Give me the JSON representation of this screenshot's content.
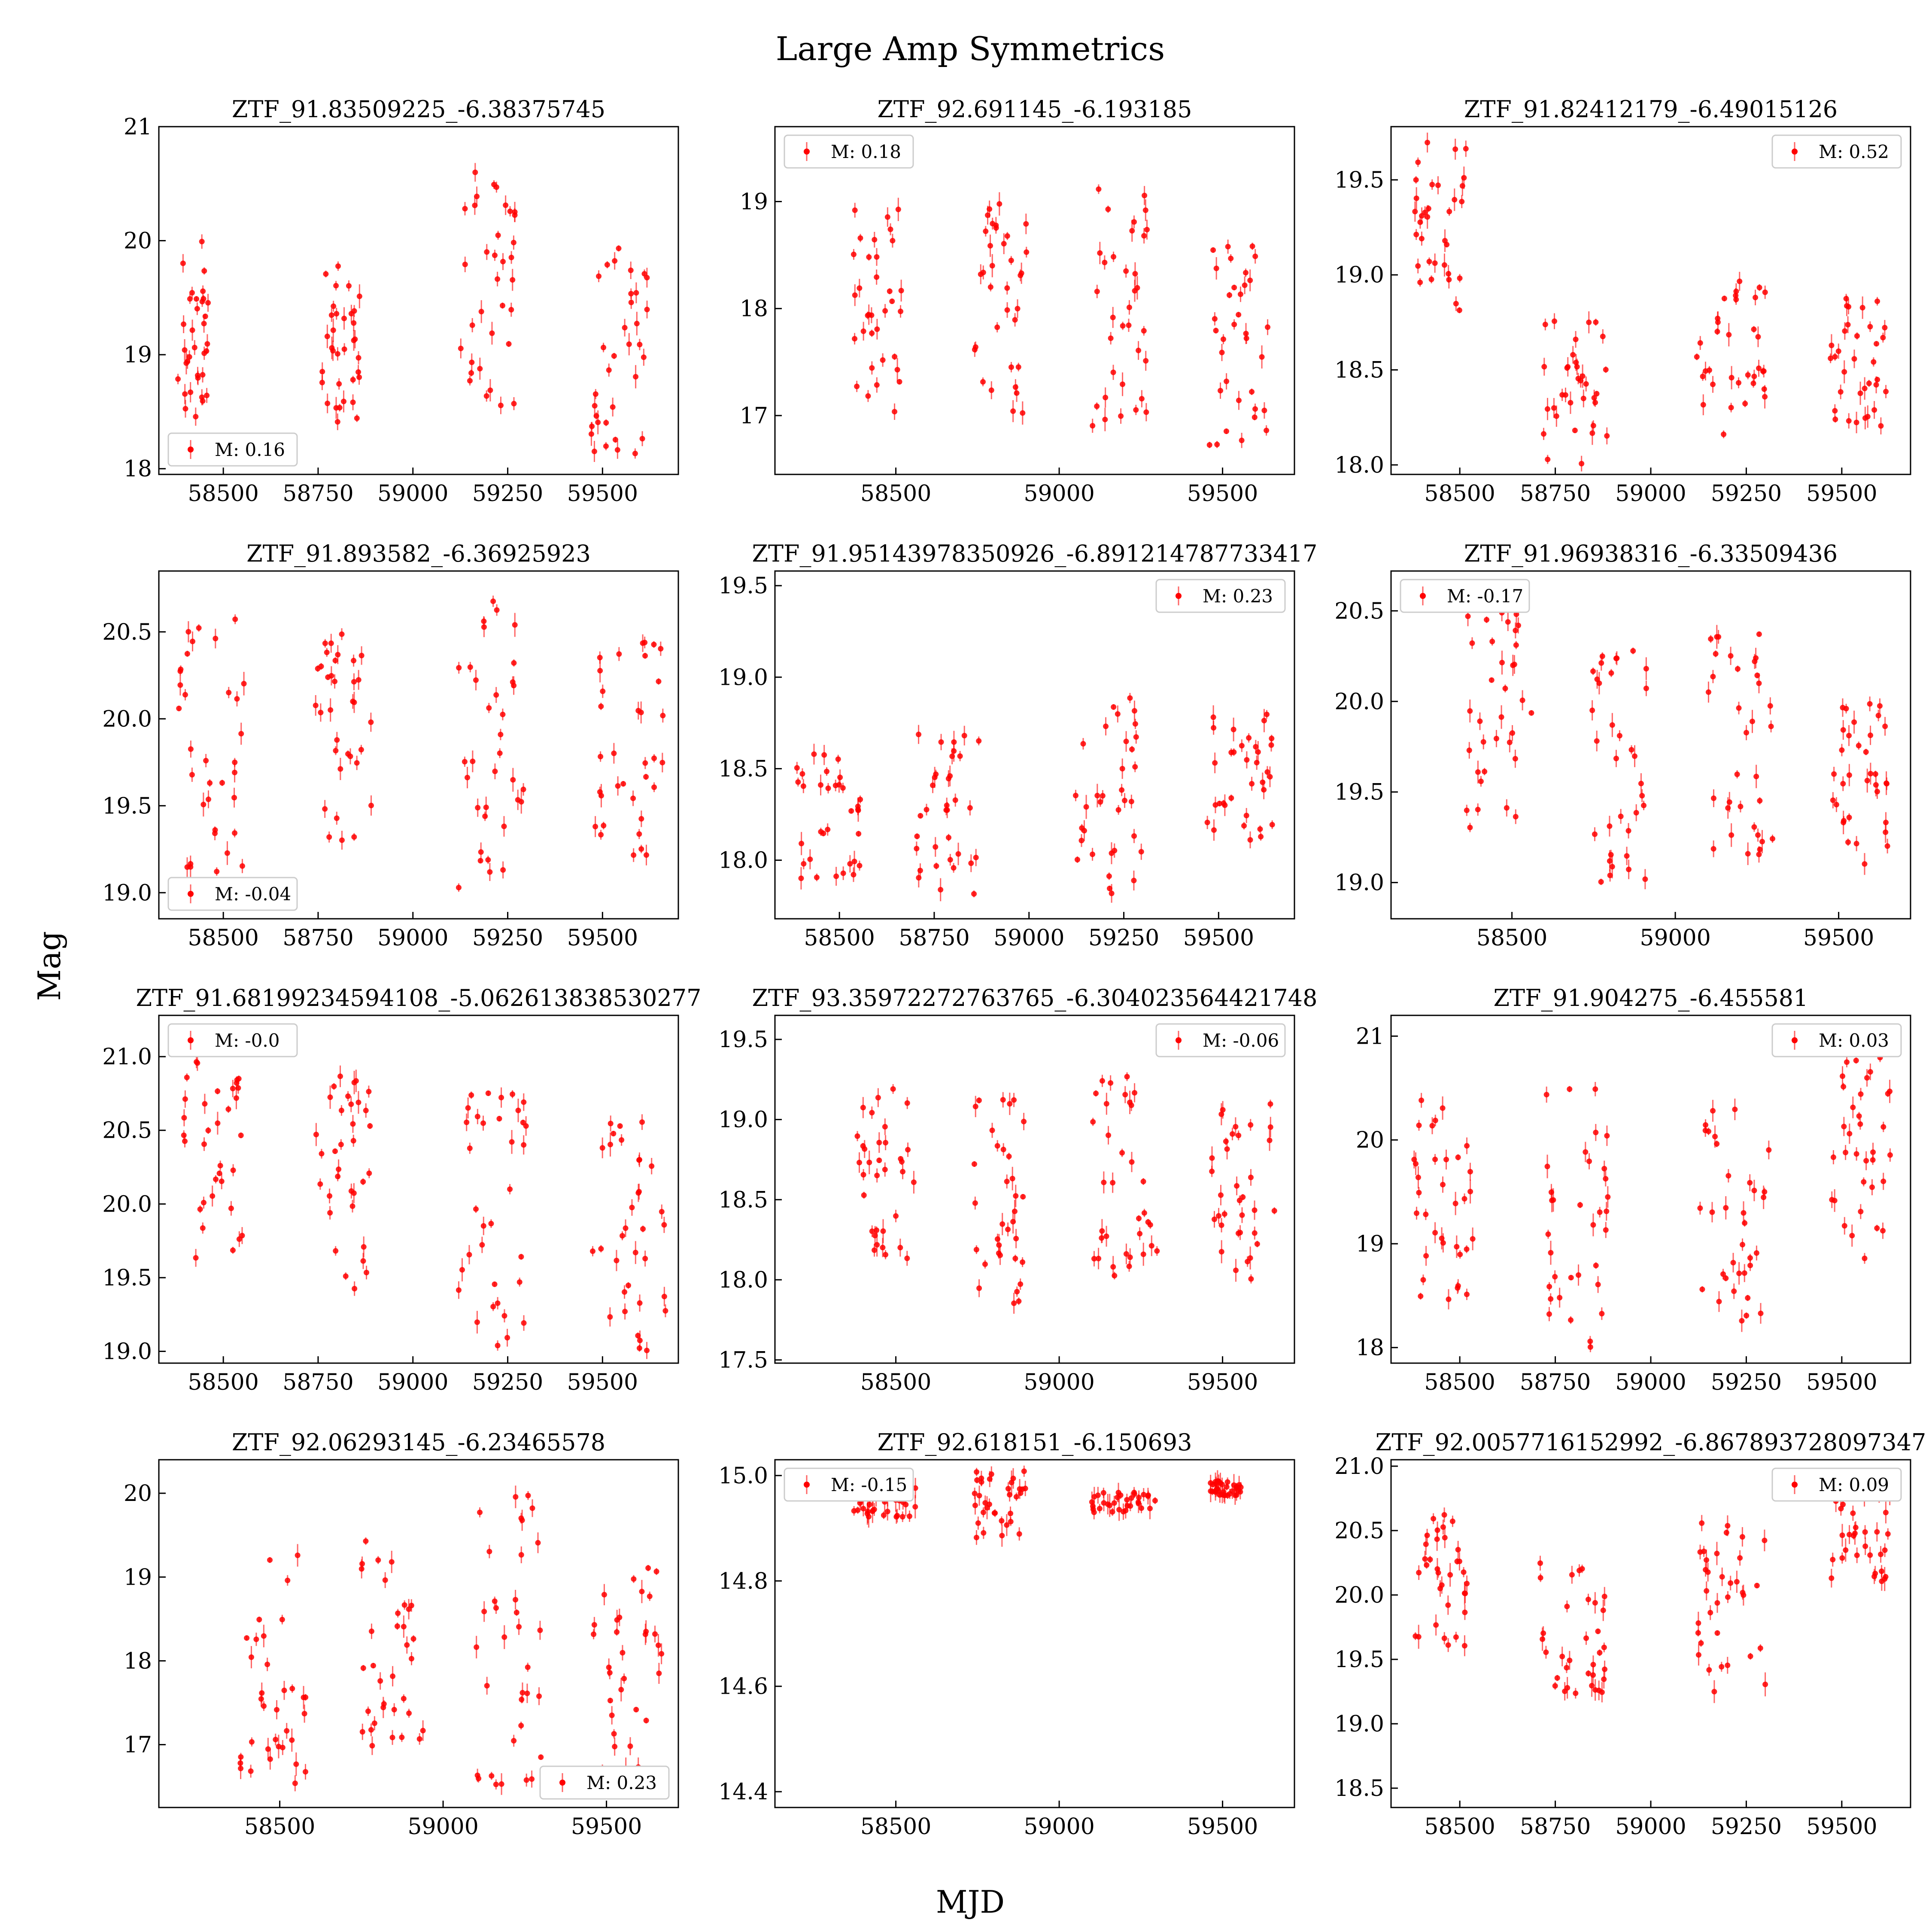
{
  "figure": {
    "title": "Large Amp Symmetrics",
    "xlabel": "MJD",
    "ylabel": "Mag",
    "marker_color": "#ff0000",
    "legend_prefix": "M: "
  },
  "chart_data": [
    {
      "type": "scatter",
      "title": "ZTF_91.83509225_-6.38375745",
      "legend": "M: 0.16",
      "legend_loc": "lower left",
      "xlim": [
        58330,
        59700
      ],
      "ylim": [
        21.0,
        17.95
      ],
      "xticks": [
        58500,
        58750,
        59000,
        59250,
        59500
      ],
      "yticks": [
        18,
        19,
        20,
        21
      ],
      "ytick_labels": [
        "18",
        "19",
        "20",
        "21"
      ],
      "clusters": [
        {
          "x": [
            58380,
            58460
          ],
          "y": [
            18.3,
            20.0
          ]
        },
        {
          "x": [
            58760,
            58880
          ],
          "y": [
            18.4,
            19.8
          ]
        },
        {
          "x": [
            59120,
            59270
          ],
          "y": [
            18.5,
            20.7
          ]
        },
        {
          "x": [
            59470,
            59620
          ],
          "y": [
            18.1,
            20.1
          ]
        }
      ]
    },
    {
      "type": "scatter",
      "title": "ZTF_92.691145_-6.193185",
      "legend": "M: 0.18",
      "legend_loc": "upper left",
      "xlim": [
        58130,
        59720
      ],
      "ylim": [
        19.7,
        16.45
      ],
      "xticks": [
        58500,
        59000,
        59500
      ],
      "yticks": [
        17,
        18,
        19
      ],
      "ytick_labels": [
        "17",
        "18",
        "19"
      ],
      "clusters": [
        {
          "x": [
            58370,
            58520
          ],
          "y": [
            17.0,
            19.0
          ]
        },
        {
          "x": [
            58740,
            58900
          ],
          "y": [
            17.0,
            19.0
          ]
        },
        {
          "x": [
            59100,
            59280
          ],
          "y": [
            16.9,
            19.3
          ]
        },
        {
          "x": [
            59460,
            59650
          ],
          "y": [
            16.7,
            18.8
          ]
        }
      ]
    },
    {
      "type": "scatter",
      "title": "ZTF_91.82412179_-6.49015126",
      "legend": "M: 0.52",
      "legend_loc": "upper right",
      "xlim": [
        58320,
        59680
      ],
      "ylim": [
        19.78,
        17.95
      ],
      "xticks": [
        58500,
        58750,
        59000,
        59250,
        59500
      ],
      "yticks": [
        18.0,
        18.5,
        19.0,
        19.5
      ],
      "ytick_labels": [
        "18.0",
        "18.5",
        "19.0",
        "19.5"
      ],
      "clusters": [
        {
          "x": [
            58380,
            58520
          ],
          "y": [
            18.8,
            19.7
          ]
        },
        {
          "x": [
            58710,
            58890
          ],
          "y": [
            18.0,
            18.8
          ]
        },
        {
          "x": [
            59120,
            59310
          ],
          "y": [
            18.1,
            19.0
          ]
        },
        {
          "x": [
            59470,
            59620
          ],
          "y": [
            18.2,
            18.9
          ]
        }
      ]
    },
    {
      "type": "scatter",
      "title": "ZTF_91.893582_-6.36925923",
      "legend": "M: -0.04",
      "legend_loc": "lower left",
      "xlim": [
        58330,
        59700
      ],
      "ylim": [
        20.85,
        18.85
      ],
      "xticks": [
        58500,
        58750,
        59000,
        59250,
        59500
      ],
      "yticks": [
        19.0,
        19.5,
        20.0,
        20.5
      ],
      "ytick_labels": [
        "19.0",
        "19.5",
        "20.0",
        "20.5"
      ],
      "clusters": [
        {
          "x": [
            58380,
            58560
          ],
          "y": [
            19.1,
            20.6
          ]
        },
        {
          "x": [
            58740,
            58890
          ],
          "y": [
            19.3,
            20.5
          ]
        },
        {
          "x": [
            59120,
            59300
          ],
          "y": [
            19.0,
            20.7
          ]
        },
        {
          "x": [
            59470,
            59660
          ],
          "y": [
            19.2,
            20.5
          ]
        }
      ]
    },
    {
      "type": "scatter",
      "title": "ZTF_91.95143978350926_-6.891214787733417",
      "legend": "M: 0.23",
      "legend_loc": "upper right",
      "xlim": [
        58330,
        59700
      ],
      "ylim": [
        19.58,
        17.68
      ],
      "xticks": [
        58500,
        58750,
        59000,
        59250,
        59500
      ],
      "yticks": [
        18.0,
        18.5,
        19.0,
        19.5
      ],
      "ytick_labels": [
        "18.0",
        "18.5",
        "19.0",
        "19.5"
      ],
      "clusters": [
        {
          "x": [
            58380,
            58560
          ],
          "y": [
            17.9,
            18.6
          ]
        },
        {
          "x": [
            58700,
            58880
          ],
          "y": [
            17.8,
            18.7
          ]
        },
        {
          "x": [
            59120,
            59300
          ],
          "y": [
            17.8,
            18.9
          ]
        },
        {
          "x": [
            59470,
            59660
          ],
          "y": [
            18.1,
            18.9
          ]
        }
      ]
    },
    {
      "type": "scatter",
      "title": "ZTF_91.96938316_-6.33509436",
      "legend": "M: -0.17",
      "legend_loc": "upper left",
      "xlim": [
        58130,
        59720
      ],
      "ylim": [
        20.72,
        18.8
      ],
      "xticks": [
        58500,
        59000,
        59500
      ],
      "yticks": [
        19.0,
        19.5,
        20.0,
        20.5
      ],
      "ytick_labels": [
        "19.0",
        "19.5",
        "20.0",
        "20.5"
      ],
      "clusters": [
        {
          "x": [
            58360,
            58560
          ],
          "y": [
            19.3,
            20.5
          ]
        },
        {
          "x": [
            58740,
            58920
          ],
          "y": [
            19.0,
            20.3
          ]
        },
        {
          "x": [
            59100,
            59300
          ],
          "y": [
            19.1,
            20.4
          ]
        },
        {
          "x": [
            59470,
            59650
          ],
          "y": [
            19.1,
            20.0
          ]
        }
      ]
    },
    {
      "type": "scatter",
      "title": "ZTF_91.68199234594108_-5.062613838530277",
      "legend": "M: -0.0",
      "legend_loc": "upper left",
      "xlim": [
        58330,
        59700
      ],
      "ylim": [
        21.28,
        18.92
      ],
      "xticks": [
        58500,
        58750,
        59000,
        59250,
        59500
      ],
      "yticks": [
        19.0,
        19.5,
        20.0,
        20.5,
        21.0
      ],
      "ytick_labels": [
        "19.0",
        "19.5",
        "20.0",
        "20.5",
        "21.0"
      ],
      "clusters": [
        {
          "x": [
            58380,
            58560
          ],
          "y": [
            19.5,
            21.0
          ]
        },
        {
          "x": [
            58740,
            58890
          ],
          "y": [
            19.4,
            20.9
          ]
        },
        {
          "x": [
            59120,
            59300
          ],
          "y": [
            19.0,
            20.8
          ]
        },
        {
          "x": [
            59470,
            59670
          ],
          "y": [
            19.0,
            20.6
          ]
        }
      ]
    },
    {
      "type": "scatter",
      "title": "ZTF_93.35972272763765_-6.304023564421748",
      "legend": "M: -0.06",
      "legend_loc": "upper right",
      "xlim": [
        58130,
        59720
      ],
      "ylim": [
        19.65,
        17.48
      ],
      "xticks": [
        58500,
        59000,
        59500
      ],
      "yticks": [
        17.5,
        18.0,
        18.5,
        19.0,
        19.5
      ],
      "ytick_labels": [
        "17.5",
        "18.0",
        "18.5",
        "19.0",
        "19.5"
      ],
      "clusters": [
        {
          "x": [
            58370,
            58560
          ],
          "y": [
            18.1,
            19.2
          ]
        },
        {
          "x": [
            58740,
            58900
          ],
          "y": [
            17.8,
            19.2
          ]
        },
        {
          "x": [
            59100,
            59300
          ],
          "y": [
            17.9,
            19.3
          ]
        },
        {
          "x": [
            59460,
            59670
          ],
          "y": [
            18.0,
            19.1
          ]
        }
      ]
    },
    {
      "type": "scatter",
      "title": "ZTF_91.904275_-6.455581",
      "legend": "M: 0.03",
      "legend_loc": "upper right",
      "xlim": [
        58320,
        59680
      ],
      "ylim": [
        21.2,
        17.85
      ],
      "xticks": [
        58500,
        58750,
        59000,
        59250,
        59500
      ],
      "yticks": [
        18,
        19,
        20,
        21
      ],
      "ytick_labels": [
        "18",
        "19",
        "20",
        "21"
      ],
      "clusters": [
        {
          "x": [
            58380,
            58540
          ],
          "y": [
            18.4,
            20.5
          ]
        },
        {
          "x": [
            58710,
            58890
          ],
          "y": [
            18.0,
            20.5
          ]
        },
        {
          "x": [
            59120,
            59310
          ],
          "y": [
            18.2,
            20.3
          ]
        },
        {
          "x": [
            59470,
            59630
          ],
          "y": [
            18.8,
            20.8
          ]
        }
      ]
    },
    {
      "type": "scatter",
      "title": "ZTF_92.06293145_-6.23465578",
      "legend": "M: 0.23",
      "legend_loc": "lower right",
      "xlim": [
        58130,
        59720
      ],
      "ylim": [
        20.4,
        16.25
      ],
      "xticks": [
        58500,
        59000,
        59500
      ],
      "yticks": [
        17,
        18,
        19,
        20
      ],
      "ytick_labels": [
        "17",
        "18",
        "19",
        "20"
      ],
      "clusters": [
        {
          "x": [
            58370,
            58590
          ],
          "y": [
            16.5,
            19.4
          ]
        },
        {
          "x": [
            58740,
            58950
          ],
          "y": [
            16.8,
            19.5
          ]
        },
        {
          "x": [
            59100,
            59300
          ],
          "y": [
            16.5,
            20.0
          ]
        },
        {
          "x": [
            59460,
            59670
          ],
          "y": [
            16.5,
            19.3
          ]
        }
      ]
    },
    {
      "type": "scatter",
      "title": "ZTF_92.618151_-6.150693",
      "legend": "M: -0.15",
      "legend_loc": "upper left",
      "xlim": [
        58130,
        59720
      ],
      "ylim": [
        15.03,
        14.37
      ],
      "xticks": [
        58500,
        59000,
        59500
      ],
      "yticks": [
        14.4,
        14.6,
        14.8,
        15.0
      ],
      "ytick_labels": [
        "14.4",
        "14.6",
        "14.8",
        "15.0"
      ],
      "clusters": [
        {
          "x": [
            58370,
            58560
          ],
          "y": [
            14.92,
            14.98
          ]
        },
        {
          "x": [
            58740,
            58900
          ],
          "y": [
            14.88,
            15.01
          ]
        },
        {
          "x": [
            59100,
            59300
          ],
          "y": [
            14.93,
            14.97
          ]
        },
        {
          "x": [
            59460,
            59560
          ],
          "y": [
            14.96,
            14.99
          ]
        }
      ]
    },
    {
      "type": "scatter",
      "title": "ZTF_92.0057716152992_-6.867893728097347",
      "legend": "M: 0.09",
      "legend_loc": "upper right",
      "xlim": [
        58320,
        59680
      ],
      "ylim": [
        21.05,
        18.35
      ],
      "xticks": [
        58500,
        58750,
        59000,
        59250,
        59500
      ],
      "yticks": [
        18.5,
        19.0,
        19.5,
        20.0,
        20.5,
        21.0
      ],
      "ytick_labels": [
        "18.5",
        "19.0",
        "19.5",
        "20.0",
        "20.5",
        "21.0"
      ],
      "clusters": [
        {
          "x": [
            58380,
            58520
          ],
          "y": [
            19.6,
            20.7
          ]
        },
        {
          "x": [
            58710,
            58890
          ],
          "y": [
            19.2,
            20.3
          ]
        },
        {
          "x": [
            59120,
            59300
          ],
          "y": [
            19.1,
            20.6
          ]
        },
        {
          "x": [
            59470,
            59630
          ],
          "y": [
            20.1,
            20.8
          ]
        }
      ]
    }
  ]
}
